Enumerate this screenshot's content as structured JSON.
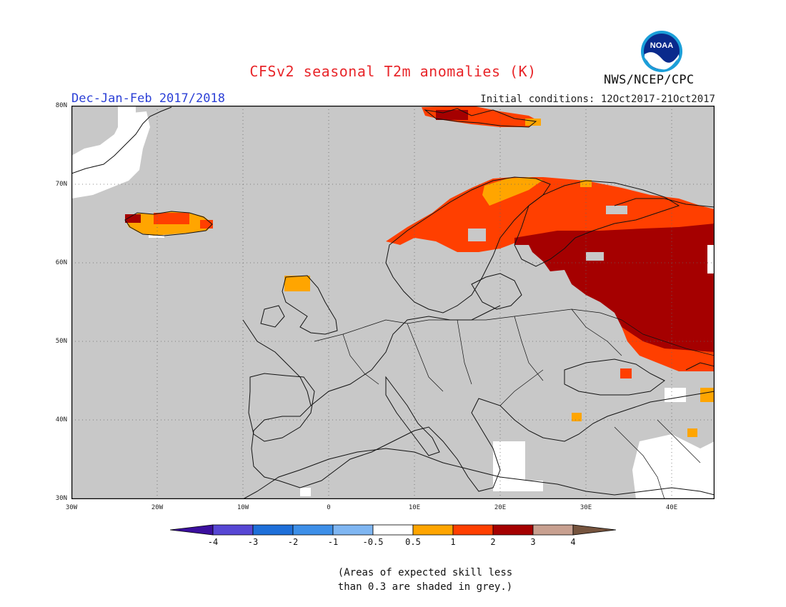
{
  "header": {
    "title": "CFSv2 seasonal T2m anomalies (K)",
    "season": "Dec-Jan-Feb 2017/2018",
    "initial_conditions": "Initial conditions: 12Oct2017-21Oct2017",
    "agency": "NWS/NCEP/CPC",
    "logo_text": "NOAA"
  },
  "map": {
    "projection": "lat-lon",
    "lon_range": [
      -30,
      45
    ],
    "lat_range": [
      30,
      80
    ],
    "lat_labels": [
      "80N",
      "70N",
      "60N",
      "50N",
      "40N",
      "30N"
    ],
    "lon_labels": [
      "30W",
      "20W",
      "10W",
      "0",
      "10E",
      "20E",
      "30E",
      "40E"
    ],
    "background_grey_meaning": "low skill",
    "colors": {
      "grey": "#c8c8c8",
      "white": "#ffffff",
      "orange": "#ffa500",
      "red_orange": "#ff3f00",
      "dark_red": "#a50000",
      "tan": "#c8a090"
    },
    "anomaly_regions": [
      {
        "name": "svalbard",
        "category": "1-2"
      },
      {
        "name": "scandinavia-finland",
        "category": "1-2"
      },
      {
        "name": "western-russia",
        "category": "2-3"
      },
      {
        "name": "iceland",
        "category": "0.5-1"
      },
      {
        "name": "scotland",
        "category": "0.5-1"
      },
      {
        "name": "crimea",
        "category": "1-2"
      }
    ]
  },
  "colorbar": {
    "labels": [
      "-4",
      "-3",
      "-2",
      "-1",
      "-0.5",
      "0.5",
      "1",
      "2",
      "3",
      "4"
    ],
    "colors": [
      "#3b0f9e",
      "#5747d4",
      "#1e6fd9",
      "#3d8fe8",
      "#7fb6f2",
      "#ffffff",
      "#ffa500",
      "#ff3f00",
      "#a50000",
      "#c8a090",
      "#76543e"
    ]
  },
  "footnote": {
    "line1": "(Areas of expected skill less",
    "line2": "than 0.3 are shaded in grey.)"
  }
}
